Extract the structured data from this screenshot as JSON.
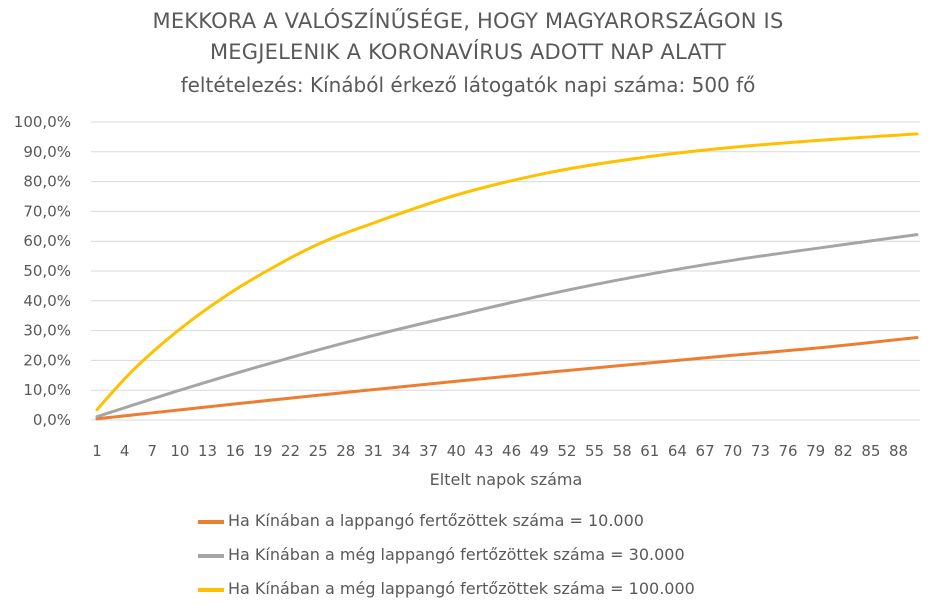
{
  "chart_data": {
    "type": "line",
    "title": "MEKKORA A VALÓSZÍNŰSÉGE, HOGY MAGYARORSZÁGON IS",
    "title_line2": "MEGJELENIK A KORONAVÍRUS ADOTT NAP ALATT",
    "subtitle": "feltételezés: Kínából érkező látogatók napi száma: 500 fő",
    "xlabel": "Eltelt napok száma",
    "ylabel": "",
    "x_range": [
      1,
      90
    ],
    "x_tick_labels": [
      "1",
      "4",
      "7",
      "10",
      "13",
      "16",
      "19",
      "22",
      "25",
      "28",
      "31",
      "34",
      "37",
      "40",
      "43",
      "46",
      "49",
      "52",
      "55",
      "58",
      "61",
      "64",
      "67",
      "70",
      "73",
      "76",
      "79",
      "82",
      "85",
      "88"
    ],
    "y_tick_labels": [
      "0,0%",
      "10,0%",
      "20,0%",
      "30,0%",
      "40,0%",
      "50,0%",
      "60,0%",
      "70,0%",
      "80,0%",
      "90,0%",
      "100,0%"
    ],
    "ylim": [
      0,
      100
    ],
    "grid": "horizontal",
    "legend_position": "bottom",
    "series": [
      {
        "name": "Ha Kínában a lappangó fertőzöttek száma = 10.000",
        "color": "#ED7D31",
        "x": [
          1,
          10,
          20,
          30,
          40,
          50,
          60,
          70,
          80,
          90
        ],
        "values": [
          0.4,
          3.4,
          6.7,
          9.9,
          13.0,
          16.0,
          18.9,
          21.7,
          24.4,
          27.7
        ]
      },
      {
        "name": "Ha Kínában a még lappangó fertőzöttek száma = 30.000",
        "color": "#A5A5A5",
        "x": [
          1,
          10,
          20,
          30,
          40,
          50,
          60,
          70,
          80,
          90
        ],
        "values": [
          1.1,
          10.0,
          19.2,
          27.6,
          35.1,
          42.2,
          48.4,
          53.6,
          58.0,
          62.2
        ]
      },
      {
        "name": "Ha Kínában a még lappangó fertőzöttek száma = 100.000",
        "color": "#FFC000",
        "x": [
          1,
          5,
          10,
          15,
          20,
          25,
          30,
          40,
          50,
          60,
          70,
          80,
          90
        ],
        "values": [
          3.5,
          17.0,
          30.5,
          41.7,
          51.0,
          59.0,
          65.0,
          75.5,
          83.0,
          88.0,
          91.5,
          94.0,
          96.0
        ]
      }
    ]
  }
}
